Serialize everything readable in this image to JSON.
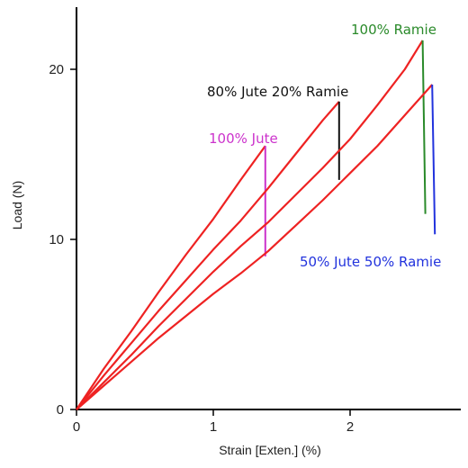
{
  "chart_data": {
    "type": "line",
    "xlabel": "Strain [Exten.] (%)",
    "ylabel": "Load (N)",
    "xlim": [
      0,
      2.8
    ],
    "ylim": [
      0,
      24
    ],
    "xticks": [
      "0",
      "1",
      "2"
    ],
    "yticks": [
      "0",
      "10",
      "20"
    ],
    "grid": false,
    "legend": "inline labels",
    "curve_color": "#ee2222",
    "series": [
      {
        "name": "100% Jute",
        "label_color": "#cc33cc",
        "x": [
          0,
          0.2,
          0.4,
          0.6,
          0.8,
          1.0,
          1.2,
          1.38,
          1.38,
          1.38
        ],
        "y": [
          0,
          2.4,
          4.6,
          6.9,
          9.1,
          11.2,
          13.5,
          15.5,
          15.5,
          9.0
        ],
        "drop_color": "#cc33cc"
      },
      {
        "name": "80% Jute 20% Ramie",
        "label_color": "#111111",
        "x": [
          0,
          0.2,
          0.4,
          0.6,
          0.8,
          1.0,
          1.2,
          1.4,
          1.6,
          1.8,
          1.92,
          1.92
        ],
        "y": [
          0,
          2.0,
          3.9,
          5.8,
          7.6,
          9.4,
          11.1,
          13.0,
          15.0,
          17.0,
          18.1,
          13.5
        ],
        "drop_color": "#111111"
      },
      {
        "name": "100% Ramie",
        "label_color": "#2a8a2a",
        "x": [
          0,
          0.2,
          0.4,
          0.6,
          0.8,
          1.0,
          1.2,
          1.4,
          1.6,
          1.8,
          2.0,
          2.2,
          2.4,
          2.53,
          2.53,
          2.55
        ],
        "y": [
          0,
          1.6,
          3.2,
          4.9,
          6.5,
          8.1,
          9.6,
          11.0,
          12.6,
          14.2,
          15.9,
          17.9,
          20.0,
          21.7,
          21.7,
          11.5
        ],
        "drop_color": "#2a8a2a"
      },
      {
        "name": "50% Jute 50% Ramie",
        "label_color": "#2233dd",
        "x": [
          0,
          0.2,
          0.4,
          0.6,
          0.8,
          1.0,
          1.2,
          1.4,
          1.6,
          1.8,
          2.0,
          2.2,
          2.4,
          2.6,
          2.6,
          2.62
        ],
        "y": [
          0,
          1.4,
          2.8,
          4.2,
          5.5,
          6.8,
          8.0,
          9.3,
          10.8,
          12.3,
          13.9,
          15.5,
          17.3,
          19.1,
          19.1,
          10.3
        ],
        "drop_color": "#2233dd"
      }
    ]
  }
}
